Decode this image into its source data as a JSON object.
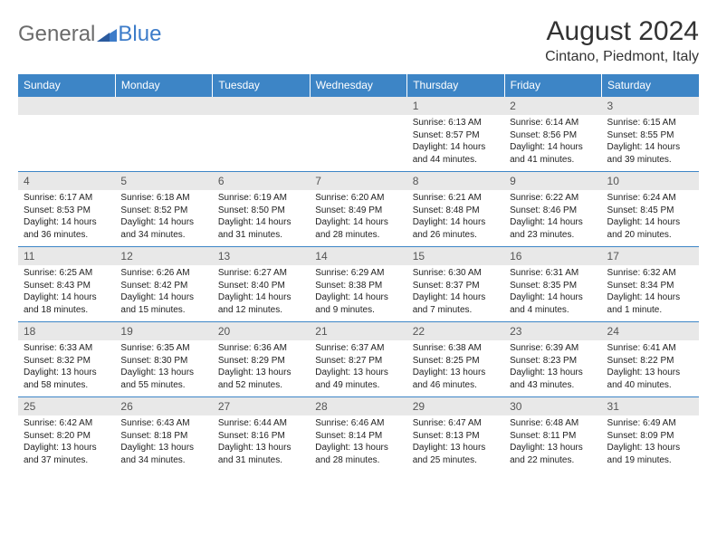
{
  "logo": {
    "text1": "General",
    "text2": "Blue"
  },
  "title": "August 2024",
  "location": "Cintano, Piedmont, Italy",
  "colors": {
    "header_bg": "#3d85c6",
    "header_text": "#ffffff",
    "daynum_bg": "#e8e8e8",
    "border": "#3d85c6",
    "logo_blue": "#3d7cc9",
    "logo_gray": "#6b6b6b"
  },
  "day_headers": [
    "Sunday",
    "Monday",
    "Tuesday",
    "Wednesday",
    "Thursday",
    "Friday",
    "Saturday"
  ],
  "weeks": [
    {
      "nums": [
        "",
        "",
        "",
        "",
        "1",
        "2",
        "3"
      ],
      "cells": [
        null,
        null,
        null,
        null,
        {
          "sunrise": "Sunrise: 6:13 AM",
          "sunset": "Sunset: 8:57 PM",
          "daylight": "Daylight: 14 hours and 44 minutes."
        },
        {
          "sunrise": "Sunrise: 6:14 AM",
          "sunset": "Sunset: 8:56 PM",
          "daylight": "Daylight: 14 hours and 41 minutes."
        },
        {
          "sunrise": "Sunrise: 6:15 AM",
          "sunset": "Sunset: 8:55 PM",
          "daylight": "Daylight: 14 hours and 39 minutes."
        }
      ]
    },
    {
      "nums": [
        "4",
        "5",
        "6",
        "7",
        "8",
        "9",
        "10"
      ],
      "cells": [
        {
          "sunrise": "Sunrise: 6:17 AM",
          "sunset": "Sunset: 8:53 PM",
          "daylight": "Daylight: 14 hours and 36 minutes."
        },
        {
          "sunrise": "Sunrise: 6:18 AM",
          "sunset": "Sunset: 8:52 PM",
          "daylight": "Daylight: 14 hours and 34 minutes."
        },
        {
          "sunrise": "Sunrise: 6:19 AM",
          "sunset": "Sunset: 8:50 PM",
          "daylight": "Daylight: 14 hours and 31 minutes."
        },
        {
          "sunrise": "Sunrise: 6:20 AM",
          "sunset": "Sunset: 8:49 PM",
          "daylight": "Daylight: 14 hours and 28 minutes."
        },
        {
          "sunrise": "Sunrise: 6:21 AM",
          "sunset": "Sunset: 8:48 PM",
          "daylight": "Daylight: 14 hours and 26 minutes."
        },
        {
          "sunrise": "Sunrise: 6:22 AM",
          "sunset": "Sunset: 8:46 PM",
          "daylight": "Daylight: 14 hours and 23 minutes."
        },
        {
          "sunrise": "Sunrise: 6:24 AM",
          "sunset": "Sunset: 8:45 PM",
          "daylight": "Daylight: 14 hours and 20 minutes."
        }
      ]
    },
    {
      "nums": [
        "11",
        "12",
        "13",
        "14",
        "15",
        "16",
        "17"
      ],
      "cells": [
        {
          "sunrise": "Sunrise: 6:25 AM",
          "sunset": "Sunset: 8:43 PM",
          "daylight": "Daylight: 14 hours and 18 minutes."
        },
        {
          "sunrise": "Sunrise: 6:26 AM",
          "sunset": "Sunset: 8:42 PM",
          "daylight": "Daylight: 14 hours and 15 minutes."
        },
        {
          "sunrise": "Sunrise: 6:27 AM",
          "sunset": "Sunset: 8:40 PM",
          "daylight": "Daylight: 14 hours and 12 minutes."
        },
        {
          "sunrise": "Sunrise: 6:29 AM",
          "sunset": "Sunset: 8:38 PM",
          "daylight": "Daylight: 14 hours and 9 minutes."
        },
        {
          "sunrise": "Sunrise: 6:30 AM",
          "sunset": "Sunset: 8:37 PM",
          "daylight": "Daylight: 14 hours and 7 minutes."
        },
        {
          "sunrise": "Sunrise: 6:31 AM",
          "sunset": "Sunset: 8:35 PM",
          "daylight": "Daylight: 14 hours and 4 minutes."
        },
        {
          "sunrise": "Sunrise: 6:32 AM",
          "sunset": "Sunset: 8:34 PM",
          "daylight": "Daylight: 14 hours and 1 minute."
        }
      ]
    },
    {
      "nums": [
        "18",
        "19",
        "20",
        "21",
        "22",
        "23",
        "24"
      ],
      "cells": [
        {
          "sunrise": "Sunrise: 6:33 AM",
          "sunset": "Sunset: 8:32 PM",
          "daylight": "Daylight: 13 hours and 58 minutes."
        },
        {
          "sunrise": "Sunrise: 6:35 AM",
          "sunset": "Sunset: 8:30 PM",
          "daylight": "Daylight: 13 hours and 55 minutes."
        },
        {
          "sunrise": "Sunrise: 6:36 AM",
          "sunset": "Sunset: 8:29 PM",
          "daylight": "Daylight: 13 hours and 52 minutes."
        },
        {
          "sunrise": "Sunrise: 6:37 AM",
          "sunset": "Sunset: 8:27 PM",
          "daylight": "Daylight: 13 hours and 49 minutes."
        },
        {
          "sunrise": "Sunrise: 6:38 AM",
          "sunset": "Sunset: 8:25 PM",
          "daylight": "Daylight: 13 hours and 46 minutes."
        },
        {
          "sunrise": "Sunrise: 6:39 AM",
          "sunset": "Sunset: 8:23 PM",
          "daylight": "Daylight: 13 hours and 43 minutes."
        },
        {
          "sunrise": "Sunrise: 6:41 AM",
          "sunset": "Sunset: 8:22 PM",
          "daylight": "Daylight: 13 hours and 40 minutes."
        }
      ]
    },
    {
      "nums": [
        "25",
        "26",
        "27",
        "28",
        "29",
        "30",
        "31"
      ],
      "cells": [
        {
          "sunrise": "Sunrise: 6:42 AM",
          "sunset": "Sunset: 8:20 PM",
          "daylight": "Daylight: 13 hours and 37 minutes."
        },
        {
          "sunrise": "Sunrise: 6:43 AM",
          "sunset": "Sunset: 8:18 PM",
          "daylight": "Daylight: 13 hours and 34 minutes."
        },
        {
          "sunrise": "Sunrise: 6:44 AM",
          "sunset": "Sunset: 8:16 PM",
          "daylight": "Daylight: 13 hours and 31 minutes."
        },
        {
          "sunrise": "Sunrise: 6:46 AM",
          "sunset": "Sunset: 8:14 PM",
          "daylight": "Daylight: 13 hours and 28 minutes."
        },
        {
          "sunrise": "Sunrise: 6:47 AM",
          "sunset": "Sunset: 8:13 PM",
          "daylight": "Daylight: 13 hours and 25 minutes."
        },
        {
          "sunrise": "Sunrise: 6:48 AM",
          "sunset": "Sunset: 8:11 PM",
          "daylight": "Daylight: 13 hours and 22 minutes."
        },
        {
          "sunrise": "Sunrise: 6:49 AM",
          "sunset": "Sunset: 8:09 PM",
          "daylight": "Daylight: 13 hours and 19 minutes."
        }
      ]
    }
  ]
}
